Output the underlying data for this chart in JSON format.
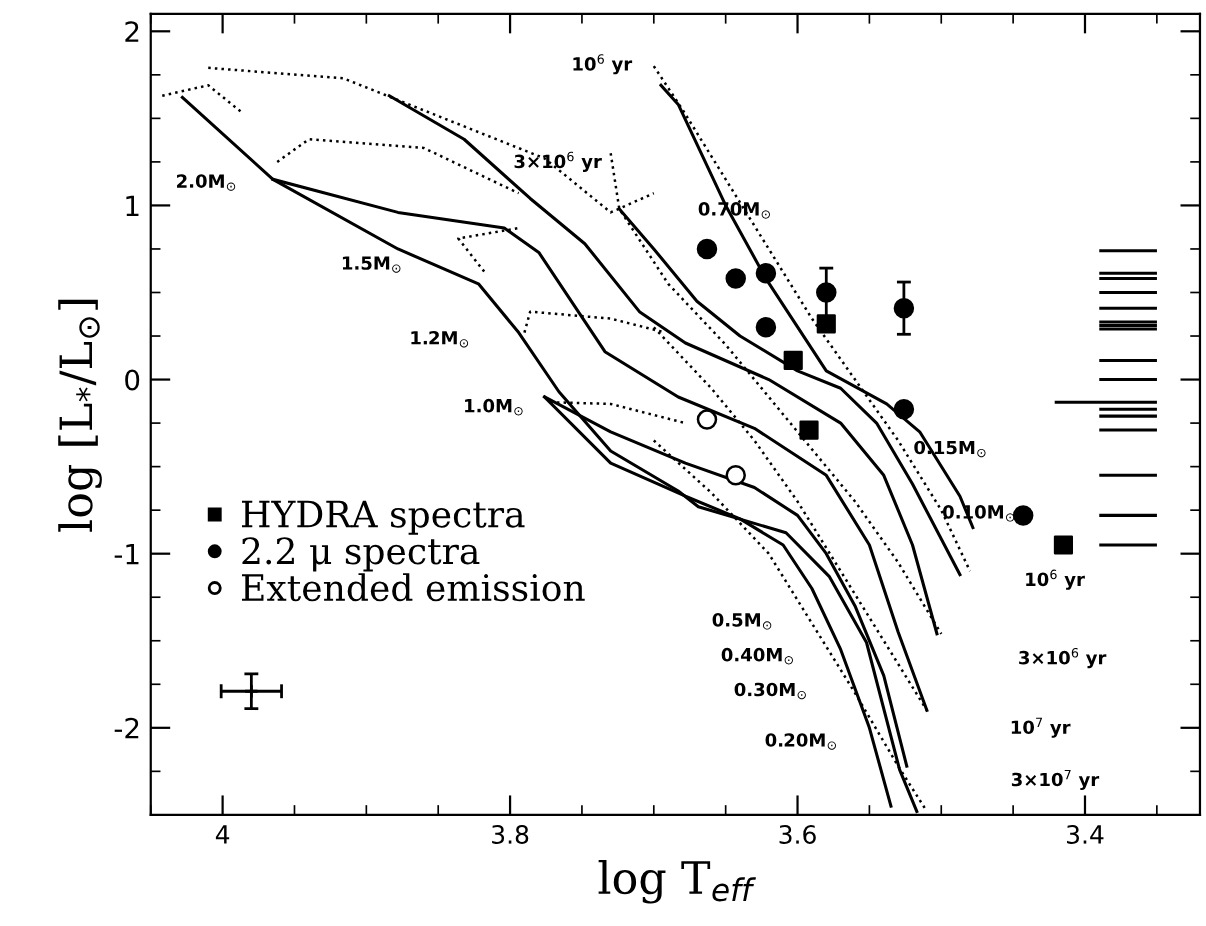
{
  "chart_data": {
    "type": "line",
    "line_style": "solid",
    "xlabel": "log T$_{eff}$",
    "ylabel": "log [L$_{*}$/L$_{⊙}$]",
    "xlim": [
      4.05,
      3.32
    ],
    "ylim": [
      -2.5,
      2.1
    ],
    "xticks": [
      4,
      3.8,
      3.6,
      3.4
    ],
    "yticks": [
      -2,
      -1,
      0,
      1,
      2
    ],
    "grid": false,
    "legend": "bottom left",
    "series": [
      {
        "color": "#000000",
        "x": [
          4.028,
          3.965,
          3.878,
          3.822,
          3.794,
          3.766,
          3.73,
          3.683,
          3.669,
          3.608,
          3.578,
          3.552,
          3.529,
          3.517
        ],
        "values": [
          1.62,
          1.15,
          0.75,
          0.55,
          0.27,
          -0.07,
          -0.41,
          -0.64,
          -0.73,
          -0.88,
          -1.13,
          -1.51,
          -2.24,
          -2.48
        ]
      },
      {
        "color": "#000000",
        "x": [
          3.965,
          3.878,
          3.804,
          3.78,
          3.734,
          3.683,
          3.63,
          3.58,
          3.55,
          3.53,
          3.51
        ],
        "values": [
          1.15,
          0.96,
          0.87,
          0.73,
          0.16,
          -0.1,
          -0.28,
          -0.55,
          -0.95,
          -1.45,
          -1.9
        ]
      },
      {
        "color": "#000000",
        "x": [
          3.884,
          3.832,
          3.786,
          3.748,
          3.71,
          3.678,
          3.62,
          3.57,
          3.54,
          3.52,
          3.503
        ],
        "values": [
          1.63,
          1.38,
          1.04,
          0.78,
          0.39,
          0.21,
          0.0,
          -0.25,
          -0.55,
          -0.95,
          -1.46
        ]
      },
      {
        "color": "#000000",
        "x": [
          3.695,
          3.683,
          3.65,
          3.622,
          3.58,
          3.538,
          3.515,
          3.487,
          3.478
        ],
        "values": [
          1.69,
          1.58,
          1.0,
          0.58,
          0.05,
          -0.14,
          -0.3,
          -0.67,
          -0.85
        ]
      },
      {
        "color": "#000000",
        "x": [
          3.724,
          3.7,
          3.67,
          3.64,
          3.6,
          3.57,
          3.545,
          3.52,
          3.487
        ],
        "values": [
          0.98,
          0.75,
          0.45,
          0.25,
          0.05,
          -0.05,
          -0.25,
          -0.6,
          -1.12
        ]
      },
      {
        "color": "#000000",
        "x": [
          3.776,
          3.73,
          3.678,
          3.63,
          3.6,
          3.58,
          3.56,
          3.54,
          3.524
        ],
        "values": [
          -0.1,
          -0.3,
          -0.48,
          -0.62,
          -0.78,
          -1.0,
          -1.3,
          -1.7,
          -2.22
        ]
      },
      {
        "color": "#000000",
        "x": [
          3.776,
          3.73,
          3.678,
          3.64,
          3.61,
          3.59,
          3.57,
          3.55,
          3.535
        ],
        "values": [
          -0.1,
          -0.48,
          -0.67,
          -0.8,
          -0.95,
          -1.2,
          -1.55,
          -2.0,
          -2.45
        ]
      },
      {
        "line_style": "dotted",
        "color": "#000000",
        "x": [
          3.7,
          3.68,
          3.65,
          3.62,
          3.59,
          3.56,
          3.53,
          3.5,
          3.48
        ],
        "values": [
          1.8,
          1.55,
          1.15,
          0.75,
          0.35,
          0.0,
          -0.35,
          -0.75,
          -1.1
        ]
      },
      {
        "line_style": "dotted",
        "color": "#000000",
        "x": [
          3.73,
          3.724,
          3.69,
          3.65,
          3.62,
          3.59,
          3.56,
          3.53,
          3.5
        ],
        "values": [
          1.3,
          0.98,
          0.55,
          0.2,
          -0.1,
          -0.4,
          -0.7,
          -1.05,
          -1.46
        ]
      },
      {
        "line_style": "dotted",
        "color": "#000000",
        "x": [
          3.7,
          3.66,
          3.63,
          3.6,
          3.57,
          3.54,
          3.51
        ],
        "values": [
          0.3,
          -0.05,
          -0.35,
          -0.7,
          -1.1,
          -1.5,
          -1.9
        ]
      },
      {
        "line_style": "dotted",
        "color": "#000000",
        "x": [
          3.7,
          3.66,
          3.62,
          3.59,
          3.56,
          3.53,
          3.51
        ],
        "values": [
          -0.35,
          -0.65,
          -1.0,
          -1.4,
          -1.8,
          -2.22,
          -2.48
        ]
      },
      {
        "line_style": "dotted",
        "color": "#000000",
        "x": [
          4.042,
          4.01,
          3.986
        ],
        "values": [
          1.63,
          1.69,
          1.53
        ]
      },
      {
        "line_style": "dotted",
        "color": "#000000",
        "x": [
          4.01,
          3.916,
          3.776,
          3.73,
          3.7
        ],
        "values": [
          1.79,
          1.73,
          1.27,
          0.96,
          1.07
        ]
      },
      {
        "line_style": "dotted",
        "color": "#000000",
        "x": [
          3.962,
          3.94,
          3.86,
          3.794
        ],
        "values": [
          1.25,
          1.38,
          1.33,
          1.07
        ]
      },
      {
        "line_style": "dotted",
        "color": "#000000",
        "x": [
          3.818,
          3.836,
          3.794
        ],
        "values": [
          0.62,
          0.81,
          0.87
        ]
      },
      {
        "line_style": "dotted",
        "color": "#000000",
        "x": [
          3.79,
          3.786,
          3.73,
          3.692
        ],
        "values": [
          0.27,
          0.39,
          0.35,
          0.27
        ]
      },
      {
        "line_style": "dotted",
        "color": "#000000",
        "x": [
          3.772,
          3.73,
          3.678
        ],
        "values": [
          -0.13,
          -0.14,
          -0.25
        ]
      },
      {
        "color": "#000000",
        "x": [
          3.389,
          3.351
        ],
        "values": [
          0.74,
          0.74
        ]
      },
      {
        "color": "#000000",
        "x": [
          3.389,
          3.351
        ],
        "values": [
          0.61,
          0.61
        ]
      },
      {
        "color": "#000000",
        "x": [
          3.389,
          3.351
        ],
        "values": [
          0.58,
          0.58
        ]
      },
      {
        "color": "#000000",
        "x": [
          3.389,
          3.351
        ],
        "values": [
          0.5,
          0.5
        ]
      },
      {
        "color": "#000000",
        "x": [
          3.389,
          3.351
        ],
        "values": [
          0.41,
          0.41
        ]
      },
      {
        "color": "#000000",
        "x": [
          3.389,
          3.351
        ],
        "values": [
          0.33,
          0.33
        ]
      },
      {
        "color": "#000000",
        "x": [
          3.389,
          3.351
        ],
        "values": [
          0.31,
          0.31
        ]
      },
      {
        "color": "#000000",
        "x": [
          3.389,
          3.351
        ],
        "values": [
          0.29,
          0.29
        ]
      },
      {
        "color": "#000000",
        "x": [
          3.389,
          3.351
        ],
        "values": [
          0.11,
          0.11
        ]
      },
      {
        "color": "#000000",
        "x": [
          3.389,
          3.351
        ],
        "values": [
          0.0,
          0.0
        ]
      },
      {
        "color": "#000000",
        "x": [
          3.42,
          3.351
        ],
        "values": [
          -0.13,
          -0.13
        ]
      },
      {
        "color": "#000000",
        "x": [
          3.389,
          3.351
        ],
        "values": [
          -0.17,
          -0.17
        ]
      },
      {
        "color": "#000000",
        "x": [
          3.389,
          3.351
        ],
        "values": [
          -0.21,
          -0.21
        ]
      },
      {
        "color": "#000000",
        "x": [
          3.389,
          3.351
        ],
        "values": [
          -0.29,
          -0.29
        ]
      },
      {
        "color": "#000000",
        "x": [
          3.389,
          3.351
        ],
        "values": [
          -0.55,
          -0.55
        ]
      },
      {
        "color": "#000000",
        "x": [
          3.389,
          3.351
        ],
        "values": [
          -0.78,
          -0.78
        ]
      },
      {
        "color": "#000000",
        "x": [
          3.389,
          3.351
        ],
        "values": [
          -0.95,
          -0.95
        ]
      },
      {
        "type": "scatter",
        "name": "HYDRA spectra",
        "marker": "square",
        "color": "#000000",
        "x": [
          3.58,
          3.603,
          3.592,
          3.415
        ],
        "values": [
          0.32,
          0.11,
          -0.29,
          -0.95
        ]
      },
      {
        "type": "scatter",
        "name": "2.2 μ spectra",
        "marker": "circle",
        "color": "#000000",
        "x": [
          3.663,
          3.643,
          3.622,
          3.622,
          3.58,
          3.526,
          3.526,
          3.443
        ],
        "values": [
          0.75,
          0.58,
          0.61,
          0.3,
          0.5,
          0.41,
          -0.17,
          -0.78
        ],
        "errors": [
          null,
          null,
          null,
          null,
          0.14,
          0.15,
          null,
          null
        ]
      },
      {
        "type": "scatter",
        "name": "Extended emission",
        "marker": "circle",
        "color": "#ffffff",
        "x": [
          3.663,
          3.643
        ],
        "values": [
          -0.23,
          -0.55
        ]
      },
      {
        "type": "scatter",
        "marker": "cross",
        "color": "#000000",
        "x": [
          3.98
        ],
        "values": [
          -1.79
        ],
        "errors": [
          0.1
        ],
        "xerrors": [
          0.021
        ]
      }
    ],
    "annotations": [
      "2.0M$_{⊙}$",
      "1.5M$_{⊙}$",
      "1.2M$_{⊙}$",
      "1.0M$_{⊙}$",
      "0.70M$_{⊙}$",
      "0.15M$_{⊙}$",
      "0.10M$_{⊙}$",
      "0.5M$_{⊙}$",
      "0.40M$_{⊙}$",
      "0.30M$_{⊙}$",
      "0.20M$_{⊙}$",
      "10$^{6}$ yr",
      "3×10$^{6}$ yr",
      "10$^{6}$ yr",
      "3×10$^{6}$ yr",
      "10$^{7}$ yr",
      "3×10$^{7}$ yr"
    ]
  }
}
